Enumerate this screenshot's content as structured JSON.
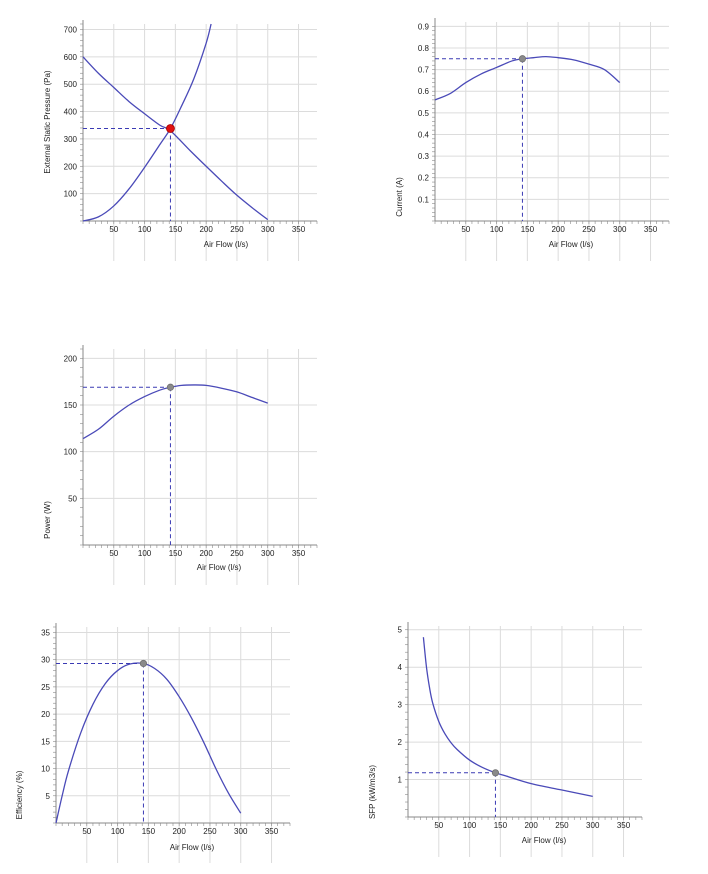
{
  "colors": {
    "curve": "#4a4ab8",
    "guide": "#3a3ab4",
    "grid": "#dcdcdc",
    "axis": "#888888",
    "marker_primary": "#e01010",
    "marker_secondary": "#8a8a8a"
  },
  "chart_data": [
    {
      "type": "line",
      "xlabel": "Air Flow (l/s)",
      "ylabel": "External Static Pressure (Pa)",
      "xlim": [
        0,
        380
      ],
      "ylim": [
        0,
        720
      ],
      "xticks": [
        "50",
        "100",
        "150",
        "200",
        "250",
        "300",
        "350"
      ],
      "xtick_values": [
        50,
        100,
        150,
        200,
        250,
        300,
        350
      ],
      "yticks": [
        "100",
        "200",
        "300",
        "400",
        "500",
        "600",
        "700"
      ],
      "ytick_values": [
        100,
        200,
        300,
        400,
        500,
        600,
        700
      ],
      "grid": true,
      "series": [
        {
          "x": [
            0,
            25,
            50,
            75,
            100,
            125,
            142,
            175,
            200,
            225,
            250,
            275,
            300
          ],
          "y": [
            600,
            540,
            488,
            436,
            392,
            350,
            330,
            255,
            200,
            146,
            94,
            48,
            5
          ]
        },
        {
          "x": [
            0,
            25,
            50,
            75,
            100,
            125,
            142,
            160,
            180,
            200,
            208
          ],
          "y": [
            0,
            15,
            55,
            118,
            196,
            280,
            338,
            420,
            520,
            650,
            720
          ]
        }
      ],
      "guide_x": 142,
      "guide_y": 338,
      "marker": {
        "x": 142,
        "y": 338,
        "color": "red"
      }
    },
    {
      "type": "line",
      "xlabel": "Air Flow (l/s)",
      "ylabel": "Current (A)",
      "xlim": [
        0,
        380
      ],
      "ylim": [
        0,
        0.92
      ],
      "xticks": [
        "50",
        "100",
        "150",
        "200",
        "250",
        "300",
        "350"
      ],
      "xtick_values": [
        50,
        100,
        150,
        200,
        250,
        300,
        350
      ],
      "yticks": [
        "0.1",
        "0.2",
        "0.3",
        "0.4",
        "0.5",
        "0.6",
        "0.7",
        "0.8",
        "0.9"
      ],
      "ytick_values": [
        0.1,
        0.2,
        0.3,
        0.4,
        0.5,
        0.6,
        0.7,
        0.8,
        0.9
      ],
      "grid": true,
      "series": [
        {
          "x": [
            0,
            25,
            50,
            75,
            100,
            125,
            142,
            160,
            180,
            200,
            225,
            250,
            275,
            300
          ],
          "y": [
            0.56,
            0.59,
            0.64,
            0.68,
            0.71,
            0.74,
            0.75,
            0.755,
            0.76,
            0.755,
            0.745,
            0.725,
            0.7,
            0.64
          ]
        }
      ],
      "guide_x": 142,
      "guide_y": 0.75,
      "marker": {
        "x": 142,
        "y": 0.75,
        "color": "grey"
      }
    },
    {
      "type": "line",
      "xlabel": "Air Flow (l/s)",
      "ylabel": "Power (W)",
      "xlim": [
        0,
        380
      ],
      "ylim": [
        0,
        210
      ],
      "xticks": [
        "50",
        "100",
        "150",
        "200",
        "250",
        "300",
        "350"
      ],
      "xtick_values": [
        50,
        100,
        150,
        200,
        250,
        300,
        350
      ],
      "yticks": [
        "50",
        "100",
        "150",
        "200"
      ],
      "ytick_values": [
        50,
        100,
        150,
        200
      ],
      "grid": true,
      "series": [
        {
          "x": [
            0,
            25,
            50,
            75,
            100,
            125,
            142,
            160,
            180,
            200,
            225,
            250,
            275,
            300
          ],
          "y": [
            114,
            124,
            138,
            150,
            159,
            166,
            169,
            171,
            171.5,
            171,
            168,
            164,
            158,
            152
          ]
        }
      ],
      "guide_x": 142,
      "guide_y": 169,
      "marker": {
        "x": 142,
        "y": 169,
        "color": "grey"
      }
    },
    {
      "type": "line",
      "xlabel": "Air Flow (l/s)",
      "ylabel": "Efficiency (%)",
      "xlim": [
        0,
        380
      ],
      "ylim": [
        0,
        36
      ],
      "xticks": [
        "50",
        "100",
        "150",
        "200",
        "250",
        "300",
        "350"
      ],
      "xtick_values": [
        50,
        100,
        150,
        200,
        250,
        300,
        350
      ],
      "yticks": [
        "5",
        "10",
        "15",
        "20",
        "25",
        "30",
        "35"
      ],
      "ytick_values": [
        5,
        10,
        15,
        20,
        25,
        30,
        35
      ],
      "grid": true,
      "series": [
        {
          "x": [
            0,
            10,
            20,
            40,
            60,
            80,
            100,
            120,
            142,
            160,
            180,
            200,
            220,
            240,
            260,
            280,
            300
          ],
          "y": [
            0,
            5,
            9.5,
            16.5,
            21.8,
            25.6,
            28.0,
            29.2,
            29.3,
            28.4,
            26.4,
            23.2,
            19.3,
            14.8,
            9.9,
            5.5,
            1.8
          ]
        }
      ],
      "guide_x": 142,
      "guide_y": 29.3,
      "marker": {
        "x": 142,
        "y": 29.3,
        "color": "grey"
      }
    },
    {
      "type": "line",
      "xlabel": "Air Flow (l/s)",
      "ylabel": "SFP (kW/m3/s)",
      "xlim": [
        0,
        380
      ],
      "ylim": [
        0,
        5.1
      ],
      "xticks": [
        "50",
        "100",
        "150",
        "200",
        "250",
        "300",
        "350"
      ],
      "xtick_values": [
        50,
        100,
        150,
        200,
        250,
        300,
        350
      ],
      "yticks": [
        "1",
        "2",
        "3",
        "4",
        "5"
      ],
      "ytick_values": [
        1,
        2,
        3,
        4,
        5
      ],
      "grid": true,
      "series": [
        {
          "x": [
            25,
            30,
            35,
            40,
            50,
            60,
            70,
            80,
            100,
            120,
            142,
            160,
            200,
            250,
            300
          ],
          "y": [
            4.8,
            4.0,
            3.45,
            3.05,
            2.55,
            2.22,
            1.98,
            1.8,
            1.52,
            1.33,
            1.18,
            1.09,
            0.89,
            0.72,
            0.55
          ]
        }
      ],
      "guide_x": 142,
      "guide_y": 1.18,
      "marker": {
        "x": 142,
        "y": 1.18,
        "color": "grey"
      }
    }
  ]
}
